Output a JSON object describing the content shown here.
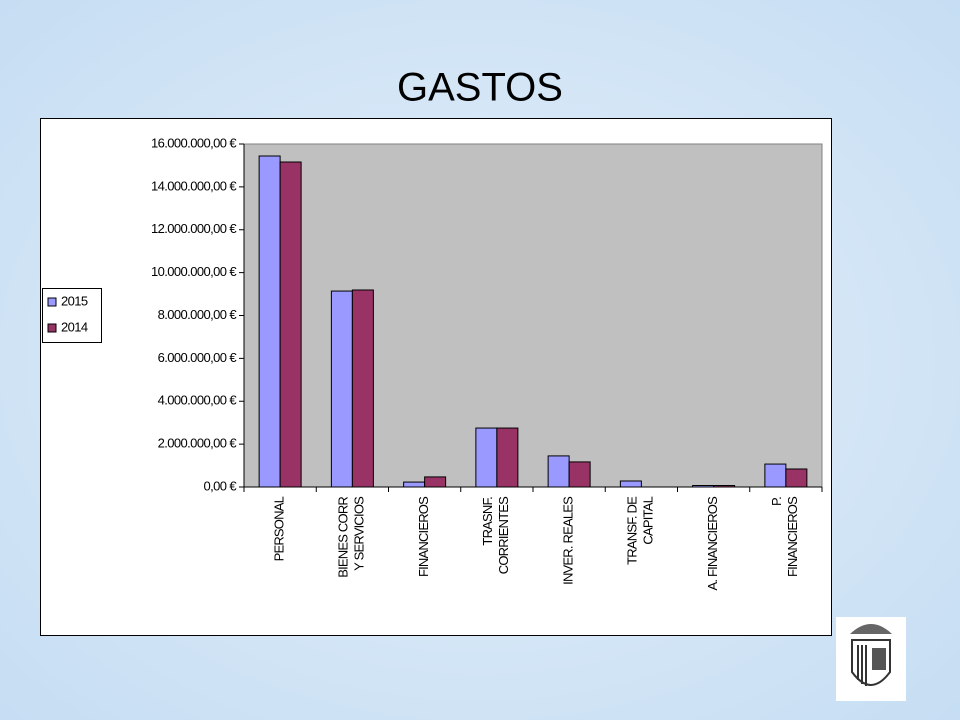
{
  "chart_data": {
    "type": "bar",
    "title": "GASTOS",
    "categories": [
      "PERSONAL",
      "BIENES CORR\nY SERVICIOS",
      "FINANCIEROS",
      "TRASNF.\nCORRIENTES",
      "INVER. REALES",
      "TRANSF. DE\nCAPITAL",
      "A. FINANCIEROS",
      "P.\nFINANCIEROS"
    ],
    "series": [
      {
        "name": "2015",
        "color": "#9999ff",
        "values": [
          15440000,
          9140000,
          230000,
          2750000,
          1450000,
          280000,
          70000,
          1070000
        ]
      },
      {
        "name": "2014",
        "color": "#993366",
        "values": [
          15160000,
          9190000,
          470000,
          2750000,
          1170000,
          0,
          70000,
          840000
        ]
      }
    ],
    "ylim": [
      0,
      16000000
    ],
    "yticks": [
      {
        "value": 0,
        "label": "0,00 €"
      },
      {
        "value": 2000000,
        "label": "2.000.000,00 €"
      },
      {
        "value": 4000000,
        "label": "4.000.000,00 €"
      },
      {
        "value": 6000000,
        "label": "6.000.000,00 €"
      },
      {
        "value": 8000000,
        "label": "8.000.000,00 €"
      },
      {
        "value": 10000000,
        "label": "10.000.000,00 €"
      },
      {
        "value": 12000000,
        "label": "12.000.000,00 €"
      },
      {
        "value": 14000000,
        "label": "14.000.000,00 €"
      },
      {
        "value": 16000000,
        "label": "16.000.000,00 €"
      }
    ],
    "legend": "left",
    "plot_background": "#c0c0c0"
  }
}
